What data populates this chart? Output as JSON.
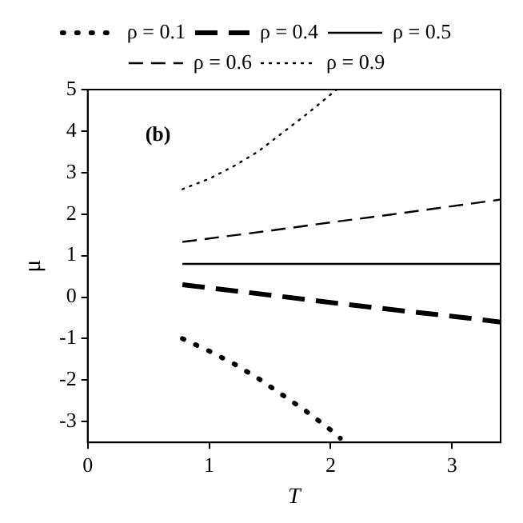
{
  "chart_data": {
    "type": "line",
    "xlabel": "T",
    "ylabel": "μ",
    "annotations": [
      "(b)"
    ],
    "xlim": [
      0,
      3.4
    ],
    "ylim": [
      -3.5,
      5
    ],
    "xticks": [
      0,
      1,
      2,
      3
    ],
    "yticks": [
      -3,
      -2,
      -1,
      0,
      1,
      2,
      3,
      4,
      5
    ],
    "grid": false,
    "legend": "top",
    "marker": "none",
    "series": [
      {
        "name": "ρ = 0.1",
        "color": "#000000",
        "line_style": "dotted",
        "x": [
          0.78,
          1.0,
          1.2,
          1.4,
          1.6,
          1.8,
          2.0,
          2.08
        ],
        "values": [
          -1.0,
          -1.3,
          -1.6,
          -1.95,
          -2.35,
          -2.75,
          -3.2,
          -3.4
        ]
      },
      {
        "name": "ρ = 0.4",
        "color": "#000000",
        "line_style": "dashed",
        "x": [
          0.78,
          1.5,
          2.0,
          2.5,
          3.0,
          3.4
        ],
        "values": [
          0.3,
          0.05,
          -0.13,
          -0.3,
          -0.46,
          -0.6
        ]
      },
      {
        "name": "ρ = 0.5",
        "color": "#000000",
        "line_style": "solid",
        "x": [
          0.78,
          3.4
        ],
        "values": [
          0.8,
          0.8
        ]
      },
      {
        "name": "ρ = 0.6",
        "color": "#000000",
        "line_style": "dashed",
        "x": [
          0.78,
          1.5,
          2.0,
          2.5,
          3.0,
          3.4
        ],
        "values": [
          1.33,
          1.6,
          1.8,
          1.99,
          2.19,
          2.35
        ]
      },
      {
        "name": "ρ = 0.9",
        "color": "#000000",
        "line_style": "dotted",
        "x": [
          0.78,
          1.0,
          1.2,
          1.4,
          1.6,
          1.8,
          2.05
        ],
        "values": [
          2.6,
          2.85,
          3.15,
          3.5,
          3.95,
          4.4,
          5.0
        ]
      }
    ]
  }
}
